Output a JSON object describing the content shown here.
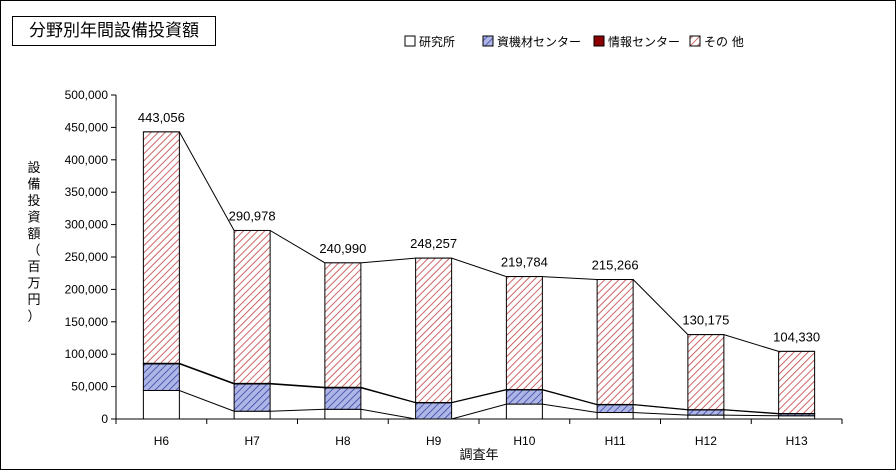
{
  "title": "分野別年間設備投資額",
  "colors": {
    "research": "#ffffff",
    "materials": "#aeb6e6",
    "materials_line": "#3a44a8",
    "info": "#8b0000",
    "other": "#f2c4c4",
    "other_line": "#c04040"
  },
  "chart_data": {
    "type": "bar",
    "stacked": true,
    "categories": [
      "H6",
      "H7",
      "H8",
      "H9",
      "H10",
      "H11",
      "H12",
      "H13"
    ],
    "series": [
      {
        "name": "研究所",
        "values": [
          44000,
          12000,
          15000,
          0,
          23000,
          10000,
          6000,
          5000
        ]
      },
      {
        "name": "資機材センター",
        "values": [
          41000,
          42000,
          33000,
          25000,
          22000,
          12000,
          8000,
          3000
        ]
      },
      {
        "name": "情報センター",
        "values": [
          1000,
          1000,
          1000,
          500,
          500,
          500,
          500,
          500
        ]
      },
      {
        "name": "その 他",
        "values": [
          357056,
          235978,
          191990,
          222757,
          174284,
          192766,
          115675,
          95830
        ]
      }
    ],
    "totals": [
      443056,
      290978,
      240990,
      248257,
      219784,
      215266,
      130175,
      104330
    ],
    "total_labels": [
      "443,056",
      "290,978",
      "240,990",
      "248,257",
      "219,784",
      "215,266",
      "130,175",
      "104,330"
    ],
    "xlabel": "調査年",
    "ylabel": "設備投資額（百万円）",
    "ylim": [
      0,
      500000
    ],
    "yticks": [
      0,
      50000,
      100000,
      150000,
      200000,
      250000,
      300000,
      350000,
      400000,
      450000,
      500000
    ],
    "ytick_labels": [
      "0",
      "50,000",
      "100,000",
      "150,000",
      "200,000",
      "250,000",
      "300,000",
      "350,000",
      "400,000",
      "450,000",
      "500,000"
    ],
    "legend_position": "top-right",
    "grid": false
  }
}
